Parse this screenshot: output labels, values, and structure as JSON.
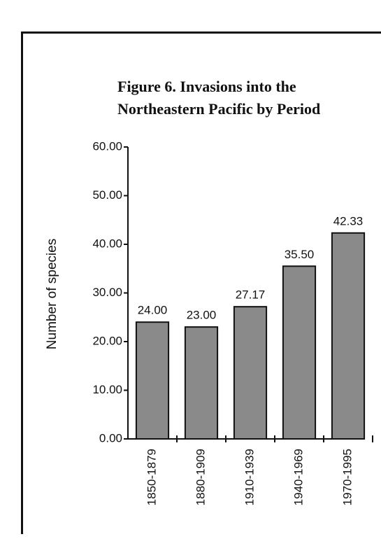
{
  "chart_data": {
    "type": "bar",
    "title": "Figure 6. Invasions into the Northeastern Pacific by Period",
    "y_label": "Number of species",
    "categories": [
      "1850-1879",
      "1880-1909",
      "1910-1939",
      "1940-1969",
      "1970-1995"
    ],
    "values": [
      24.0,
      23.0,
      27.17,
      35.5,
      42.33
    ],
    "value_labels": [
      "24.00",
      "23.00",
      "27.17",
      "35.50",
      "42.33"
    ],
    "color": "#8a8a8a",
    "ylim": [
      0,
      60
    ],
    "yticks": [
      {
        "value": 0,
        "label": "0.00"
      },
      {
        "value": 10,
        "label": "10.00"
      },
      {
        "value": 20,
        "label": "20.00"
      },
      {
        "value": 30,
        "label": "30.00"
      },
      {
        "value": 40,
        "label": "40.00"
      },
      {
        "value": 50,
        "label": "50.00"
      },
      {
        "value": 60,
        "label": "60.00"
      }
    ],
    "grid": false
  }
}
